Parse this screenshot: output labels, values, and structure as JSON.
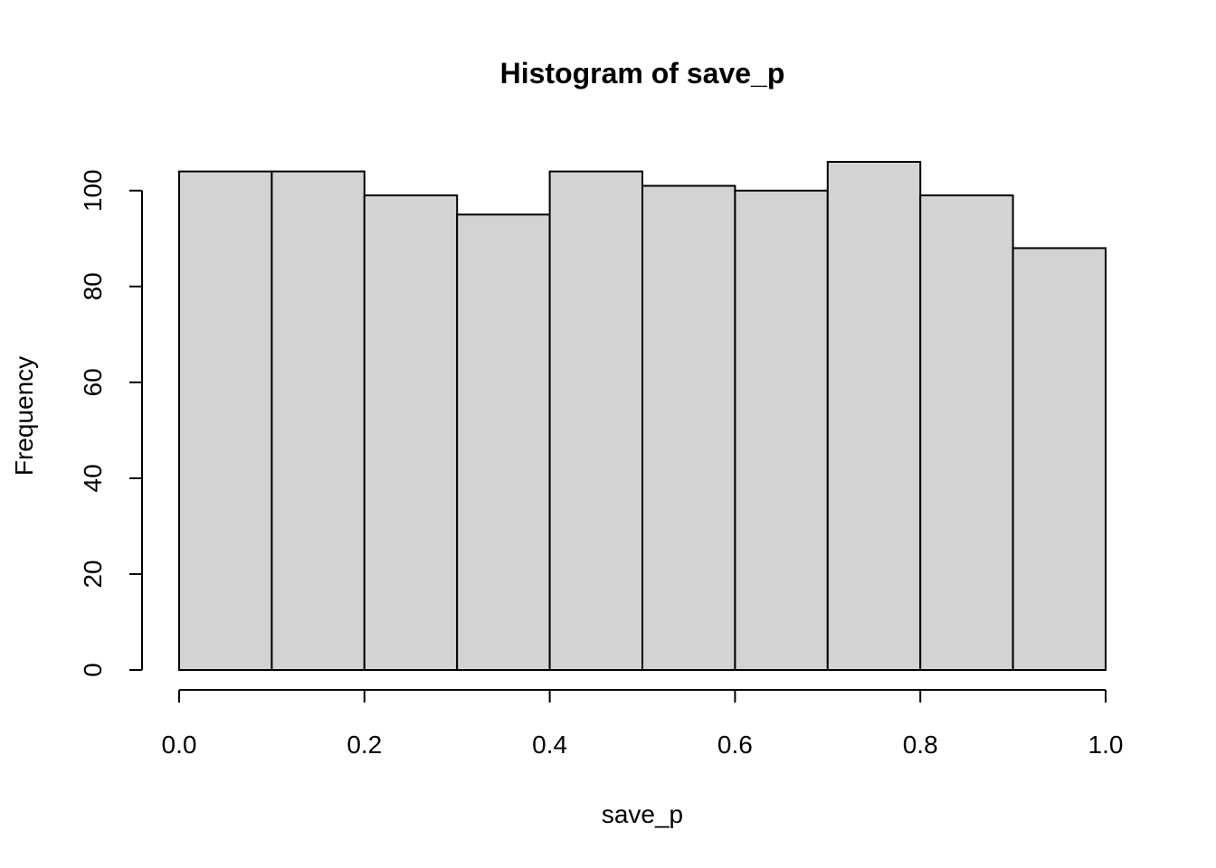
{
  "chart_data": {
    "type": "bar",
    "title": "Histogram of save_p",
    "xlabel": "save_p",
    "ylabel": "Frequency",
    "bins": [
      {
        "start": 0.0,
        "end": 0.1,
        "count": 104
      },
      {
        "start": 0.1,
        "end": 0.2,
        "count": 104
      },
      {
        "start": 0.2,
        "end": 0.3,
        "count": 99
      },
      {
        "start": 0.3,
        "end": 0.4,
        "count": 95
      },
      {
        "start": 0.4,
        "end": 0.5,
        "count": 104
      },
      {
        "start": 0.5,
        "end": 0.6,
        "count": 101
      },
      {
        "start": 0.6,
        "end": 0.7,
        "count": 100
      },
      {
        "start": 0.7,
        "end": 0.8,
        "count": 106
      },
      {
        "start": 0.8,
        "end": 0.9,
        "count": 99
      },
      {
        "start": 0.9,
        "end": 1.0,
        "count": 88
      }
    ],
    "xlim": [
      0.0,
      1.0
    ],
    "ylim": [
      0,
      106
    ],
    "xticks": [
      0.0,
      0.2,
      0.4,
      0.6,
      0.8,
      1.0
    ],
    "xtick_labels": [
      "0.0",
      "0.2",
      "0.4",
      "0.6",
      "0.8",
      "1.0"
    ],
    "yticks": [
      0,
      20,
      40,
      60,
      80,
      100
    ],
    "ytick_labels": [
      "0",
      "20",
      "40",
      "60",
      "80",
      "100"
    ],
    "grid": false,
    "bar_color": "#d3d3d3",
    "edge_color": "#000000"
  }
}
